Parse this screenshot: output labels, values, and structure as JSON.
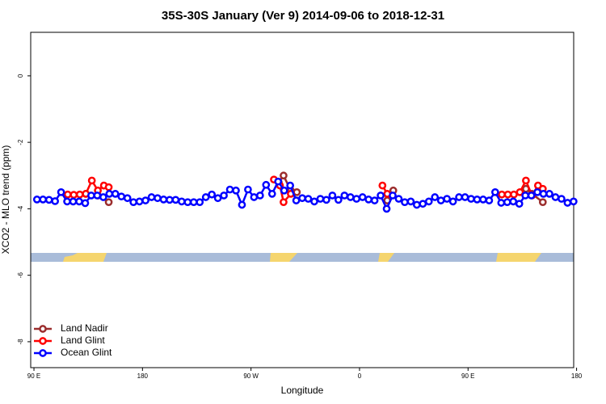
{
  "chart_data": {
    "type": "line",
    "title": "35S-30S January (Ver 9)   2014-09-06 to 2018-12-31",
    "x_label": "Longitude",
    "y_label": "XCO2 - MLO trend (ppm)",
    "xlim": [
      87.3,
      537.6
    ],
    "ylim": [
      -8.78,
      1.31
    ],
    "xticks": [
      {
        "value": 90,
        "label": "90 E"
      },
      180,
      {
        "value": 270,
        "label": "90 W"
      },
      {
        "value": 360,
        "label": "0"
      },
      {
        "value": 450,
        "label": "90 E"
      },
      {
        "value": 540,
        "label": "180"
      }
    ],
    "yticks": [
      0,
      -2,
      -4,
      -6,
      -8
    ],
    "legend": "bottom-left",
    "series": [
      {
        "name": "Land Nadir",
        "color": "#9b2d2d",
        "x": [
          133,
          143,
          152,
          null,
          293,
          297,
          303,
          308,
          null,
          383,
          388,
          null,
          498,
          503,
          512
        ],
        "values": [
          -3.55,
          -3.6,
          -3.8,
          null,
          -3.2,
          -3.0,
          -3.45,
          -3.5,
          null,
          -3.75,
          -3.45,
          null,
          -3.4,
          -3.55,
          -3.8
        ]
      },
      {
        "name": "Land Glint",
        "color": "#ff0000",
        "x": [
          118,
          123,
          128,
          133,
          138,
          143,
          148,
          152,
          null,
          289,
          294,
          297,
          303,
          null,
          379,
          383,
          null,
          478,
          483,
          488,
          493,
          498,
          503,
          508,
          512
        ],
        "values": [
          -3.57,
          -3.58,
          -3.57,
          -3.55,
          -3.15,
          -3.45,
          -3.3,
          -3.35,
          null,
          -3.12,
          -3.3,
          -3.8,
          -3.55,
          null,
          -3.3,
          -3.55,
          null,
          -3.57,
          -3.57,
          -3.57,
          -3.5,
          -3.15,
          -3.6,
          -3.3,
          -3.4
        ]
      },
      {
        "name": "Ocean Glint",
        "color": "#0000ff",
        "x": [
          92.5,
          97.5,
          102.5,
          107.5,
          112.5,
          117.5,
          122.5,
          127.5,
          132.5,
          137.5,
          142.5,
          147.5,
          152.5,
          157.5,
          162.5,
          167.5,
          172.5,
          177.5,
          182.5,
          187.5,
          192.5,
          197.5,
          202.5,
          207.5,
          212.5,
          217.5,
          222.5,
          227.5,
          232.5,
          237.5,
          242.5,
          247.5,
          252.5,
          257.5,
          262.5,
          267.5,
          272.5,
          277.5,
          282.5,
          287.5,
          292.5,
          297.5,
          302.5,
          307.5,
          312.5,
          317.5,
          322.5,
          327.5,
          332.5,
          337.5,
          342.5,
          347.5,
          352.5,
          357.5,
          362.5,
          367.5,
          372.5,
          377.5,
          382.5,
          387.5,
          392.5,
          397.5,
          402.5,
          407.5,
          412.5,
          417.5,
          422.5,
          427.5,
          432.5,
          437.5,
          442.5,
          447.5,
          452.5,
          457.5,
          462.5,
          467.5,
          472.5,
          477.5,
          482.5,
          487.5,
          492.5,
          497.5,
          502.5,
          507.5,
          512.5,
          517.5,
          522.5,
          527.5,
          532.5,
          537.5
        ],
        "values": [
          -3.72,
          -3.72,
          -3.73,
          -3.77,
          -3.5,
          -3.78,
          -3.78,
          -3.78,
          -3.83,
          -3.6,
          -3.6,
          -3.65,
          -3.55,
          -3.55,
          -3.63,
          -3.68,
          -3.8,
          -3.78,
          -3.75,
          -3.65,
          -3.68,
          -3.72,
          -3.73,
          -3.73,
          -3.78,
          -3.8,
          -3.8,
          -3.8,
          -3.65,
          -3.57,
          -3.68,
          -3.6,
          -3.42,
          -3.45,
          -3.88,
          -3.42,
          -3.65,
          -3.6,
          -3.28,
          -3.55,
          -3.18,
          -3.45,
          -3.3,
          -3.75,
          -3.68,
          -3.7,
          -3.78,
          -3.7,
          -3.73,
          -3.6,
          -3.73,
          -3.6,
          -3.65,
          -3.7,
          -3.65,
          -3.72,
          -3.75,
          -3.6,
          -4.0,
          -3.6,
          -3.7,
          -3.8,
          -3.78,
          -3.88,
          -3.85,
          -3.78,
          -3.65,
          -3.75,
          -3.7,
          -3.78,
          -3.65,
          -3.65,
          -3.7,
          -3.72,
          -3.72,
          -3.75,
          -3.5,
          -3.82,
          -3.8,
          -3.78,
          -3.85,
          -3.6,
          -3.6,
          -3.5,
          -3.55,
          -3.55,
          -3.65,
          -3.7,
          -3.82,
          -3.78
        ]
      }
    ]
  }
}
